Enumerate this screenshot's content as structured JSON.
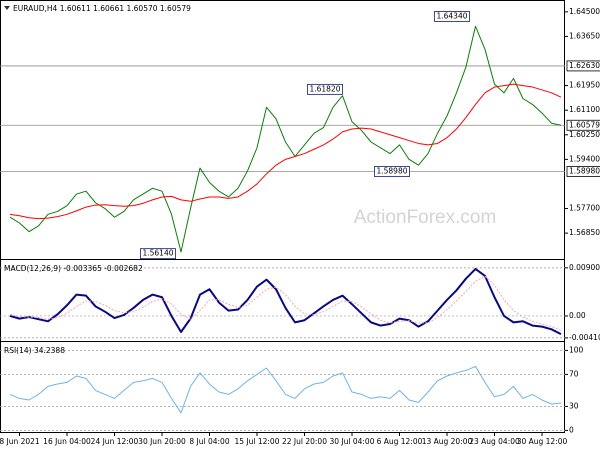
{
  "chart_data": [
    {
      "type": "line",
      "title": "EURAUD,H4 1.60611 1.60661 1.60570 1.60579",
      "watermark": "ActionForex.com",
      "categories": [
        null,
        "8 Jun 2021",
        null,
        null,
        null,
        null,
        "16 Jun 04:00",
        null,
        null,
        null,
        null,
        "24 Jun 12:00",
        null,
        null,
        null,
        null,
        "30 Jun 20:00",
        null,
        null,
        null,
        null,
        "8 Jul 04:00",
        null,
        null,
        null,
        null,
        "15 Jul 12:00",
        null,
        null,
        null,
        null,
        "22 Jul 20:00",
        null,
        null,
        null,
        null,
        "30 Jul 04:00",
        null,
        null,
        null,
        null,
        "6 Aug 12:00",
        null,
        null,
        null,
        null,
        "13 Aug 20:00",
        null,
        null,
        null,
        null,
        "23 Aug 04:00",
        null,
        null,
        null,
        null,
        "30 Aug 12:00",
        null,
        null
      ],
      "ylim": [
        1.5599,
        1.6484
      ],
      "yticks": [
        {
          "value": 1.645,
          "label": "1.64500"
        },
        {
          "value": 1.6365,
          "label": "1.63650"
        },
        {
          "value": 1.6195,
          "label": "1.61950"
        },
        {
          "value": 1.611,
          "label": "1.61100"
        },
        {
          "value": 1.6025,
          "label": "1.60250"
        },
        {
          "value": 1.594,
          "label": "1.59400"
        },
        {
          "value": 1.577,
          "label": "1.57700"
        },
        {
          "value": 1.5685,
          "label": "1.56850"
        }
      ],
      "levels": [
        {
          "value": 1.6263,
          "label": "1.62630"
        },
        {
          "value": 1.5898,
          "label": "1.58980"
        },
        {
          "value": 1.60579,
          "label": "1.60579"
        }
      ],
      "annotations": [
        {
          "value": 1.6434,
          "label": "1.64340"
        },
        {
          "value": 1.6182,
          "label": "1.61820"
        },
        {
          "value": 1.5898,
          "label": "1.58980"
        },
        {
          "value": 1.5614,
          "label": "1.56140"
        }
      ],
      "series": [
        {
          "color": "#0b7d0b",
          "width": 1,
          "values": [
            1.574,
            1.572,
            1.569,
            1.571,
            1.575,
            1.576,
            1.578,
            1.582,
            1.583,
            1.579,
            1.577,
            1.574,
            1.576,
            1.58,
            1.582,
            1.584,
            1.583,
            1.575,
            1.562,
            1.577,
            1.591,
            1.586,
            1.583,
            1.581,
            1.584,
            1.59,
            1.598,
            1.612,
            1.608,
            1.6,
            1.595,
            1.599,
            1.603,
            1.605,
            1.612,
            1.616,
            1.607,
            1.604,
            1.6,
            1.598,
            1.596,
            1.599,
            1.594,
            1.592,
            1.596,
            1.603,
            1.609,
            1.617,
            1.626,
            1.64,
            1.632,
            1.62,
            1.617,
            1.622,
            1.615,
            1.613,
            1.61,
            1.6065,
            1.60579
          ]
        },
        {
          "color": "#ff0000",
          "width": 1,
          "values": [
            1.575,
            1.5745,
            1.5738,
            1.5735,
            1.5737,
            1.5742,
            1.575,
            1.5762,
            1.5775,
            1.5782,
            1.5783,
            1.578,
            1.5778,
            1.578,
            1.5788,
            1.58,
            1.581,
            1.5812,
            1.58,
            1.5795,
            1.5803,
            1.581,
            1.581,
            1.5805,
            1.581,
            1.583,
            1.5855,
            1.589,
            1.592,
            1.594,
            1.595,
            1.596,
            1.5975,
            1.599,
            1.601,
            1.6035,
            1.6045,
            1.6048,
            1.6045,
            1.6035,
            1.6025,
            1.6015,
            1.6005,
            1.5995,
            1.599,
            1.5995,
            1.6015,
            1.6045,
            1.6085,
            1.613,
            1.617,
            1.619,
            1.6195,
            1.62,
            1.6195,
            1.619,
            1.618,
            1.617,
            1.6155
          ]
        }
      ]
    },
    {
      "type": "line",
      "title": "MACD(12,26,9) -0.003365 -0.002682",
      "ylim": [
        -0.0045,
        0.0101
      ],
      "yticks": [
        0.009005,
        {
          "value": 0,
          "label": "0.00"
        },
        -0.004104
      ],
      "grid": true,
      "series": [
        {
          "color": "#0a0a80",
          "width": 2,
          "values": [
            0,
            -0.0005,
            -0.0002,
            -0.0006,
            -0.001,
            0.0003,
            0.002,
            0.004,
            0.0038,
            0.0018,
            0.0008,
            -0.0004,
            0.0002,
            0.0015,
            0.003,
            0.004,
            0.0035,
            0,
            -0.003,
            -0.0005,
            0.004,
            0.005,
            0.0025,
            0.001,
            0.0012,
            0.003,
            0.0055,
            0.0068,
            0.005,
            0.0015,
            -0.0012,
            -0.0008,
            0.0005,
            0.0018,
            0.003,
            0.0038,
            0.0022,
            0.0005,
            -0.0012,
            -0.0018,
            -0.0015,
            -0.0005,
            -0.0008,
            -0.002,
            -0.001,
            0.001,
            0.003,
            0.0048,
            0.007,
            0.0088,
            0.0075,
            0.0035,
            0,
            -0.0012,
            -0.001,
            -0.0018,
            -0.002,
            -0.0025,
            -0.0034
          ]
        },
        {
          "color": "#f0a8b8",
          "width": 1,
          "dash": true,
          "values": [
            0.0003,
            -0.0001,
            -0.0002,
            -0.0003,
            -0.0006,
            -0.0003,
            0.0005,
            0.0018,
            0.0028,
            0.0027,
            0.002,
            0.001,
            0.0006,
            0.0008,
            0.0016,
            0.0027,
            0.0032,
            0.0022,
            0.0003,
            -0.0006,
            0.001,
            0.003,
            0.003,
            0.0022,
            0.0016,
            0.002,
            0.0035,
            0.005,
            0.0054,
            0.004,
            0.0018,
            0.0004,
            0.0002,
            0.0008,
            0.0018,
            0.0028,
            0.0027,
            0.0017,
            0.0004,
            -0.0008,
            -0.0013,
            -0.001,
            -0.0009,
            -0.0013,
            -0.0013,
            -0.0003,
            0.0012,
            0.0028,
            0.0046,
            0.0065,
            0.0074,
            0.0058,
            0.003,
            0.001,
            -0.0002,
            -0.001,
            -0.0015,
            -0.002,
            -0.0027
          ]
        }
      ]
    },
    {
      "type": "line",
      "title": "RSI(14) 34.2388",
      "ylim": [
        -2,
        108
      ],
      "yticks": [
        100,
        70,
        30,
        0
      ],
      "grid": true,
      "series": [
        {
          "color": "#6fb3e8",
          "width": 1,
          "values": [
            45,
            40,
            38,
            45,
            55,
            58,
            60,
            68,
            65,
            50,
            45,
            40,
            50,
            60,
            62,
            65,
            60,
            40,
            22,
            55,
            72,
            58,
            48,
            45,
            52,
            62,
            70,
            78,
            62,
            45,
            40,
            52,
            58,
            60,
            68,
            72,
            48,
            45,
            40,
            42,
            40,
            50,
            38,
            35,
            48,
            62,
            68,
            72,
            75,
            80,
            60,
            42,
            45,
            55,
            40,
            45,
            38,
            33,
            34.2388
          ]
        }
      ]
    }
  ]
}
